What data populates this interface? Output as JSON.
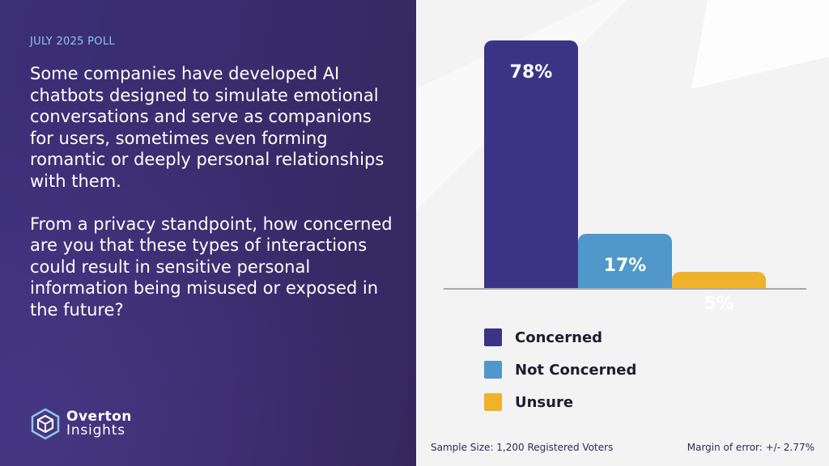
{
  "poll": {
    "date_label": "JULY 2025 POLL",
    "question_paragraphs": [
      "Some companies have developed AI chatbots designed to simulate emotional conversations and serve as companions for users, sometimes even forming romantic or deeply personal relationships with them.",
      "From a privacy standpoint, how concerned are you that these types of interactions could result in sensitive personal information being misused or exposed in the future?"
    ]
  },
  "brand": {
    "line1": "Overton",
    "line2": "Insights",
    "icon": "hexagon-cube-icon"
  },
  "chart_data": {
    "type": "bar",
    "categories": [
      "Concerned",
      "Not Concerned",
      "Unsure"
    ],
    "values": [
      78,
      17,
      5
    ],
    "value_labels": [
      "78%",
      "17%",
      "5%"
    ],
    "colors": [
      "#3b3484",
      "#4f98c9",
      "#f0b12b"
    ],
    "ylim": [
      0,
      78
    ],
    "legend_position": "bottom",
    "grid": false
  },
  "footer": {
    "sample_size": "Sample Size: 1,200 Registered Voters",
    "margin_of_error": "Margin of error: +/- 2.77%"
  }
}
